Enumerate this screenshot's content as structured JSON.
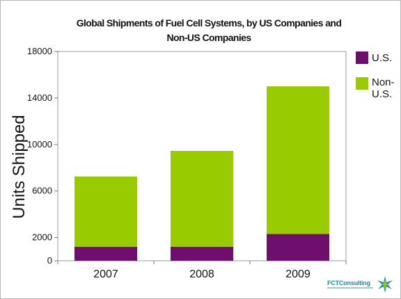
{
  "chart_data": {
    "type": "bar",
    "stacked": true,
    "title_line1": "Global Shipments of Fuel Cell Systems, by US Companies and",
    "title_line2": "Non-US Companies",
    "ylabel": "Units Shipped",
    "xlabel": "",
    "categories": [
      "2007",
      "2008",
      "2009"
    ],
    "series": [
      {
        "name": "U.S.",
        "color": "#6e0f6e",
        "values": [
          1200,
          1200,
          2300
        ]
      },
      {
        "name": "Non-U.S.",
        "color": "#99cc00",
        "values": [
          6050,
          8250,
          12700
        ]
      }
    ],
    "ylim": [
      0,
      18000
    ],
    "yticks": [
      0,
      2000,
      6000,
      10000,
      14000,
      18000
    ],
    "grid": false,
    "legend_position": "right"
  },
  "legend": {
    "us_label": "U.S.",
    "nonus_line1": "Non-",
    "nonus_line2": "U.S."
  },
  "logo": {
    "name": "FCTConsulting",
    "icon": "star-burst-icon"
  }
}
